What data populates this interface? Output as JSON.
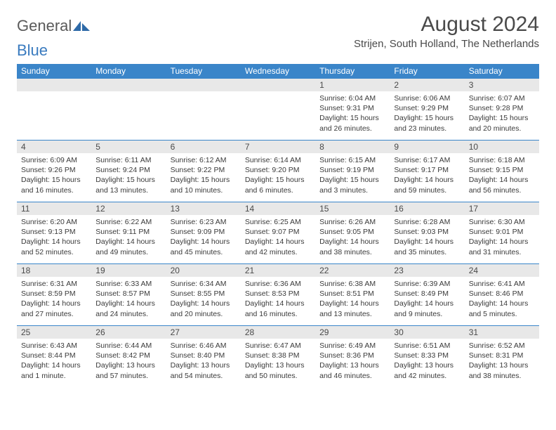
{
  "logo": {
    "text1": "General",
    "text2": "Blue"
  },
  "title": "August 2024",
  "location": "Strijen, South Holland, The Netherlands",
  "header_color": "#3a85c9",
  "daynum_bg": "#e8e8e8",
  "border_color": "#3a85c9",
  "weekdays": [
    "Sunday",
    "Monday",
    "Tuesday",
    "Wednesday",
    "Thursday",
    "Friday",
    "Saturday"
  ],
  "weeks": [
    [
      null,
      null,
      null,
      null,
      {
        "d": "1",
        "sr": "6:04 AM",
        "ss": "9:31 PM",
        "dl": "15 hours and 26 minutes."
      },
      {
        "d": "2",
        "sr": "6:06 AM",
        "ss": "9:29 PM",
        "dl": "15 hours and 23 minutes."
      },
      {
        "d": "3",
        "sr": "6:07 AM",
        "ss": "9:28 PM",
        "dl": "15 hours and 20 minutes."
      }
    ],
    [
      {
        "d": "4",
        "sr": "6:09 AM",
        "ss": "9:26 PM",
        "dl": "15 hours and 16 minutes."
      },
      {
        "d": "5",
        "sr": "6:11 AM",
        "ss": "9:24 PM",
        "dl": "15 hours and 13 minutes."
      },
      {
        "d": "6",
        "sr": "6:12 AM",
        "ss": "9:22 PM",
        "dl": "15 hours and 10 minutes."
      },
      {
        "d": "7",
        "sr": "6:14 AM",
        "ss": "9:20 PM",
        "dl": "15 hours and 6 minutes."
      },
      {
        "d": "8",
        "sr": "6:15 AM",
        "ss": "9:19 PM",
        "dl": "15 hours and 3 minutes."
      },
      {
        "d": "9",
        "sr": "6:17 AM",
        "ss": "9:17 PM",
        "dl": "14 hours and 59 minutes."
      },
      {
        "d": "10",
        "sr": "6:18 AM",
        "ss": "9:15 PM",
        "dl": "14 hours and 56 minutes."
      }
    ],
    [
      {
        "d": "11",
        "sr": "6:20 AM",
        "ss": "9:13 PM",
        "dl": "14 hours and 52 minutes."
      },
      {
        "d": "12",
        "sr": "6:22 AM",
        "ss": "9:11 PM",
        "dl": "14 hours and 49 minutes."
      },
      {
        "d": "13",
        "sr": "6:23 AM",
        "ss": "9:09 PM",
        "dl": "14 hours and 45 minutes."
      },
      {
        "d": "14",
        "sr": "6:25 AM",
        "ss": "9:07 PM",
        "dl": "14 hours and 42 minutes."
      },
      {
        "d": "15",
        "sr": "6:26 AM",
        "ss": "9:05 PM",
        "dl": "14 hours and 38 minutes."
      },
      {
        "d": "16",
        "sr": "6:28 AM",
        "ss": "9:03 PM",
        "dl": "14 hours and 35 minutes."
      },
      {
        "d": "17",
        "sr": "6:30 AM",
        "ss": "9:01 PM",
        "dl": "14 hours and 31 minutes."
      }
    ],
    [
      {
        "d": "18",
        "sr": "6:31 AM",
        "ss": "8:59 PM",
        "dl": "14 hours and 27 minutes."
      },
      {
        "d": "19",
        "sr": "6:33 AM",
        "ss": "8:57 PM",
        "dl": "14 hours and 24 minutes."
      },
      {
        "d": "20",
        "sr": "6:34 AM",
        "ss": "8:55 PM",
        "dl": "14 hours and 20 minutes."
      },
      {
        "d": "21",
        "sr": "6:36 AM",
        "ss": "8:53 PM",
        "dl": "14 hours and 16 minutes."
      },
      {
        "d": "22",
        "sr": "6:38 AM",
        "ss": "8:51 PM",
        "dl": "14 hours and 13 minutes."
      },
      {
        "d": "23",
        "sr": "6:39 AM",
        "ss": "8:49 PM",
        "dl": "14 hours and 9 minutes."
      },
      {
        "d": "24",
        "sr": "6:41 AM",
        "ss": "8:46 PM",
        "dl": "14 hours and 5 minutes."
      }
    ],
    [
      {
        "d": "25",
        "sr": "6:43 AM",
        "ss": "8:44 PM",
        "dl": "14 hours and 1 minute."
      },
      {
        "d": "26",
        "sr": "6:44 AM",
        "ss": "8:42 PM",
        "dl": "13 hours and 57 minutes."
      },
      {
        "d": "27",
        "sr": "6:46 AM",
        "ss": "8:40 PM",
        "dl": "13 hours and 54 minutes."
      },
      {
        "d": "28",
        "sr": "6:47 AM",
        "ss": "8:38 PM",
        "dl": "13 hours and 50 minutes."
      },
      {
        "d": "29",
        "sr": "6:49 AM",
        "ss": "8:36 PM",
        "dl": "13 hours and 46 minutes."
      },
      {
        "d": "30",
        "sr": "6:51 AM",
        "ss": "8:33 PM",
        "dl": "13 hours and 42 minutes."
      },
      {
        "d": "31",
        "sr": "6:52 AM",
        "ss": "8:31 PM",
        "dl": "13 hours and 38 minutes."
      }
    ]
  ],
  "labels": {
    "sunrise": "Sunrise:",
    "sunset": "Sunset:",
    "daylight": "Daylight:"
  }
}
